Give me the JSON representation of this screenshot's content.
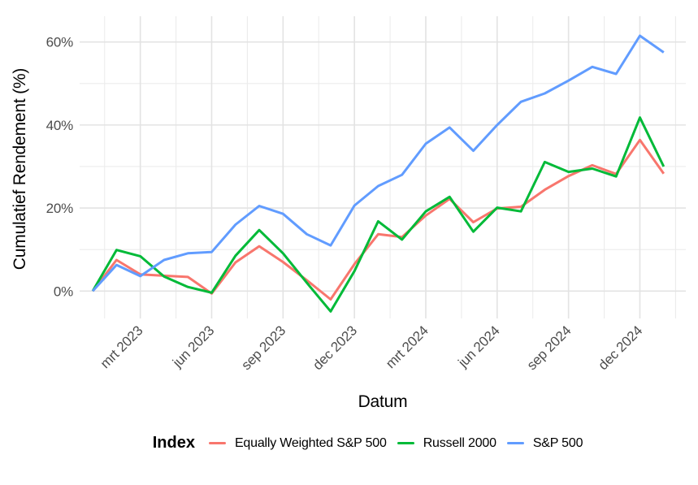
{
  "chart_data": {
    "type": "line",
    "y_axis_title": "Cumulatief Rendement (%)",
    "x_axis_title": "Datum",
    "legend_title": "Index",
    "legend_position": "bottom",
    "grid": true,
    "x": [
      "jan 2023",
      "feb 2023",
      "mrt 2023",
      "apr 2023",
      "mei 2023",
      "jun 2023",
      "jul 2023",
      "aug 2023",
      "sep 2023",
      "okt 2023",
      "nov 2023",
      "dec 2023",
      "jan 2024",
      "feb 2024",
      "mrt 2024",
      "apr 2024",
      "mei 2024",
      "jun 2024",
      "jul 2024",
      "aug 2024",
      "sep 2024",
      "okt 2024",
      "nov 2024",
      "dec 2024",
      "jan 2025"
    ],
    "x_major_ticks": [
      {
        "index": 2,
        "label": "mrt 2023"
      },
      {
        "index": 5,
        "label": "jun 2023"
      },
      {
        "index": 8,
        "label": "sep 2023"
      },
      {
        "index": 11,
        "label": "dec 2023"
      },
      {
        "index": 14,
        "label": "mrt 2024"
      },
      {
        "index": 17,
        "label": "jun 2024"
      },
      {
        "index": 20,
        "label": "sep 2024"
      },
      {
        "index": 23,
        "label": "dec 2024"
      }
    ],
    "y_major_ticks": [
      {
        "value": 0,
        "label": "0%"
      },
      {
        "value": 20,
        "label": "20%"
      },
      {
        "value": 40,
        "label": "40%"
      },
      {
        "value": 60,
        "label": "60%"
      }
    ],
    "y_minor_ticks": [
      10,
      30,
      50
    ],
    "ylim": [
      -6.6,
      66.2
    ],
    "series": [
      {
        "name": "Equally Weighted S&P 500",
        "color": "#F8766D",
        "values": [
          0,
          7.5,
          4.0,
          3.7,
          3.4,
          -0.6,
          6.9,
          10.8,
          7.0,
          2.6,
          -2.0,
          6.5,
          13.7,
          13.0,
          18.2,
          22.2,
          16.6,
          19.9,
          20.3,
          24.4,
          27.7,
          30.3,
          28.2,
          36.4,
          28.3
        ]
      },
      {
        "name": "Russell 2000",
        "color": "#00BA38",
        "values": [
          0,
          9.9,
          8.4,
          3.5,
          1.0,
          -0.4,
          8.5,
          14.7,
          9.1,
          2.0,
          -4.9,
          4.8,
          16.8,
          12.4,
          19.2,
          22.7,
          14.3,
          20.1,
          19.2,
          31.1,
          28.7,
          29.5,
          27.6,
          41.8,
          30.0
        ]
      },
      {
        "name": "S&P 500",
        "color": "#619CFF",
        "values": [
          0,
          6.3,
          3.6,
          7.5,
          9.1,
          9.4,
          16.0,
          20.5,
          18.6,
          13.7,
          11.0,
          20.6,
          25.3,
          28.0,
          35.5,
          39.4,
          33.8,
          40.0,
          45.6,
          47.6,
          50.7,
          54.0,
          52.3,
          61.5,
          57.5
        ]
      }
    ],
    "grid_color_major": "#E3E3E3",
    "grid_color_minor": "#ECECEC",
    "tick_label_color": "#4d4d4d"
  }
}
